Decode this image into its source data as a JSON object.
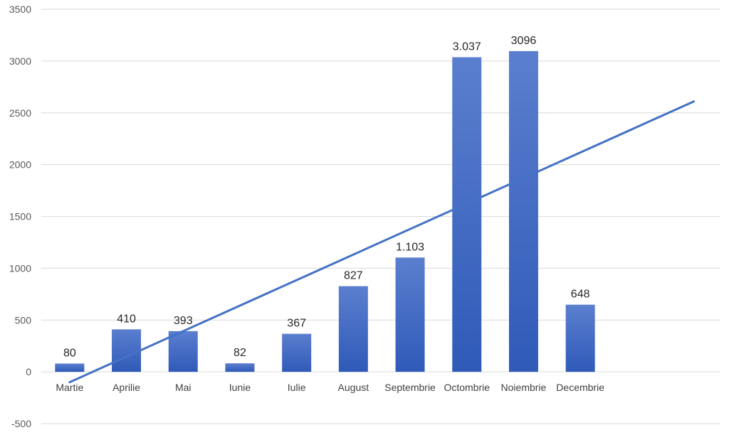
{
  "chart_data": {
    "type": "bar",
    "categories": [
      "Martie",
      "Aprilie",
      "Mai",
      "Iunie",
      "Iulie",
      "August",
      "Septembrie",
      "Octombrie",
      "Noiembrie",
      "Decembrie"
    ],
    "values": [
      80,
      410,
      393,
      82,
      367,
      827,
      1103,
      3037,
      3096,
      648
    ],
    "data_labels": [
      "80",
      "410",
      "393",
      "82",
      "367",
      "827",
      "1.103",
      "3.037",
      "3096",
      "648"
    ],
    "title": "",
    "xlabel": "",
    "ylabel": "",
    "ylim": [
      -500,
      3500
    ],
    "yticks": [
      "-500",
      "0",
      "500",
      "1000",
      "1500",
      "2000",
      "2500",
      "3000",
      "3500"
    ],
    "grid": true,
    "legend": "none",
    "trendline": {
      "type": "linear",
      "start_value": -100,
      "end_value": 2610
    },
    "colors": {
      "bar_top": "#5b7fcf",
      "bar_bottom": "#2f5ab8",
      "trendline": "#4472c4",
      "grid": "#d9d9d9"
    }
  }
}
